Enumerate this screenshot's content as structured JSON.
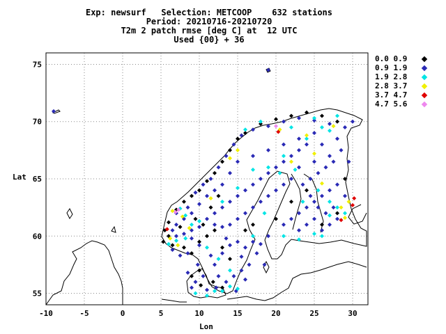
{
  "header": {
    "line1": "Exp: newsurf   Selection: METCOOP    632 stations",
    "line2": "Period: 20210716-20210720",
    "line3": "T2m 2 patch rmse [deg C] at  12 UTC",
    "line4": "Used {00} + 36"
  },
  "legend": [
    {
      "label": "0.0 0.9",
      "color": "#000000"
    },
    {
      "label": "0.9 1.9",
      "color": "#2a2ab5"
    },
    {
      "label": "1.9 2.8",
      "color": "#00e5e5"
    },
    {
      "label": "2.8 3.7",
      "color": "#f0f000"
    },
    {
      "label": "3.7 4.7",
      "color": "#e00000"
    },
    {
      "label": "4.7 5.6",
      "color": "#ee88ee"
    }
  ],
  "axes": {
    "xlabel": "Lon",
    "ylabel": "Lat",
    "xlim": [
      -10,
      32
    ],
    "ylim": [
      54,
      76
    ],
    "xticks": [
      -10,
      -5,
      0,
      5,
      10,
      15,
      20,
      25,
      30
    ],
    "yticks": [
      55,
      60,
      65,
      70,
      75
    ],
    "grid": true
  },
  "chart_data": {
    "type": "scatter",
    "description": "station rmse map",
    "series": [
      {
        "name": "0.0 0.9",
        "color": "#000000",
        "points": [
          [
            5.5,
            60.5
          ],
          [
            6,
            61.2
          ],
          [
            7,
            62.3
          ],
          [
            8,
            63
          ],
          [
            9,
            63.5
          ],
          [
            10,
            64
          ],
          [
            11,
            64.8
          ],
          [
            12,
            65.5
          ],
          [
            13,
            66.5
          ],
          [
            14,
            67.5
          ],
          [
            15,
            68.5
          ],
          [
            16,
            69
          ],
          [
            18,
            69.8
          ],
          [
            20,
            70.2
          ],
          [
            22,
            70.5
          ],
          [
            24,
            70.8
          ],
          [
            26,
            70.5
          ],
          [
            28,
            70
          ],
          [
            5.3,
            59.5
          ],
          [
            6.5,
            59.2
          ],
          [
            8,
            59
          ],
          [
            9,
            58.5
          ],
          [
            10,
            59.5
          ],
          [
            11,
            60
          ],
          [
            10.5,
            61
          ],
          [
            12,
            60.5
          ],
          [
            13,
            59
          ],
          [
            14,
            58
          ],
          [
            16,
            60.5
          ],
          [
            17,
            61
          ],
          [
            20,
            61.5
          ],
          [
            22,
            63
          ],
          [
            24,
            64
          ],
          [
            26,
            61
          ],
          [
            28,
            62
          ],
          [
            29,
            65
          ],
          [
            6,
            60
          ],
          [
            7.5,
            60.8
          ],
          [
            9.5,
            61.5
          ],
          [
            11.5,
            62.5
          ],
          [
            12.5,
            63.5
          ],
          [
            10.2,
            55.7
          ],
          [
            9,
            56.5
          ],
          [
            10,
            57
          ],
          [
            11.8,
            56
          ],
          [
            13,
            55.5
          ]
        ]
      },
      {
        "name": "0.9 1.9",
        "color": "#2a2ab5",
        "points": [
          [
            19,
            74.5
          ],
          [
            -9,
            70.9
          ],
          [
            7,
            62
          ],
          [
            8.5,
            62.5
          ],
          [
            9.5,
            63.8
          ],
          [
            10.5,
            64.5
          ],
          [
            11.5,
            65
          ],
          [
            12.5,
            66
          ],
          [
            13.5,
            67
          ],
          [
            14.5,
            68
          ],
          [
            15.5,
            68.8
          ],
          [
            17,
            69.3
          ],
          [
            19,
            69.6
          ],
          [
            21,
            70
          ],
          [
            23,
            70.3
          ],
          [
            25,
            70.1
          ],
          [
            27,
            69.8
          ],
          [
            29,
            69.5
          ],
          [
            30,
            70
          ],
          [
            25,
            69
          ],
          [
            23,
            68.5
          ],
          [
            21,
            68
          ],
          [
            19,
            67.5
          ],
          [
            17,
            67
          ],
          [
            15,
            66.5
          ],
          [
            14,
            65.5
          ],
          [
            13,
            64.5
          ],
          [
            12,
            64
          ],
          [
            11,
            63.5
          ],
          [
            10,
            62.8
          ],
          [
            9,
            62
          ],
          [
            8,
            61.5
          ],
          [
            7,
            61
          ],
          [
            6.5,
            60.5
          ],
          [
            7,
            60
          ],
          [
            8,
            60.2
          ],
          [
            9,
            60.5
          ],
          [
            10,
            60.8
          ],
          [
            11,
            61.5
          ],
          [
            12,
            62
          ],
          [
            13,
            62.5
          ],
          [
            14,
            63
          ],
          [
            15,
            63.5
          ],
          [
            16,
            64
          ],
          [
            17,
            64.5
          ],
          [
            18,
            65
          ],
          [
            19,
            65.5
          ],
          [
            20,
            66
          ],
          [
            21,
            66.5
          ],
          [
            22,
            67
          ],
          [
            23,
            67.5
          ],
          [
            24,
            68
          ],
          [
            26,
            68
          ],
          [
            28,
            68.5
          ],
          [
            27,
            67
          ],
          [
            25,
            66.5
          ],
          [
            23,
            66
          ],
          [
            22,
            65
          ],
          [
            21,
            64.5
          ],
          [
            20,
            64
          ],
          [
            19,
            63.5
          ],
          [
            18,
            63
          ],
          [
            17,
            62.5
          ],
          [
            16,
            62
          ],
          [
            15,
            61.5
          ],
          [
            14,
            61
          ],
          [
            13,
            60.8
          ],
          [
            12,
            61
          ],
          [
            13.5,
            59.8
          ],
          [
            15,
            59.5
          ],
          [
            16,
            59
          ],
          [
            17,
            59.5
          ],
          [
            18,
            59.3
          ],
          [
            19,
            60
          ],
          [
            17.5,
            58.5
          ],
          [
            16.5,
            57.5
          ],
          [
            15.5,
            57
          ],
          [
            14.5,
            56.5
          ],
          [
            13.5,
            56
          ],
          [
            12.5,
            56.5
          ],
          [
            12,
            57.5
          ],
          [
            11.5,
            58.3
          ],
          [
            13,
            58.5
          ],
          [
            14,
            59.2
          ],
          [
            15.5,
            58.2
          ],
          [
            18.5,
            57.5
          ],
          [
            16,
            56.2
          ],
          [
            21,
            61
          ],
          [
            22,
            61.5
          ],
          [
            23,
            62
          ],
          [
            24,
            62.5
          ],
          [
            25,
            63
          ],
          [
            26,
            63.5
          ],
          [
            27,
            64
          ],
          [
            28,
            64.5
          ],
          [
            29,
            63.5
          ],
          [
            25,
            61.5
          ],
          [
            24,
            61
          ],
          [
            23,
            60.5
          ],
          [
            26,
            60.5
          ],
          [
            27,
            61
          ],
          [
            28,
            61.5
          ],
          [
            27.5,
            62.5
          ],
          [
            26.5,
            62
          ],
          [
            25.5,
            62.5
          ],
          [
            24.5,
            63.5
          ],
          [
            23.5,
            64.5
          ],
          [
            24.5,
            65
          ],
          [
            25.5,
            65.5
          ],
          [
            26.5,
            66
          ],
          [
            27.5,
            66.5
          ],
          [
            28.5,
            67.5
          ],
          [
            29.5,
            66.5
          ],
          [
            10,
            59.2
          ],
          [
            9,
            59.8
          ],
          [
            8.5,
            58.5
          ],
          [
            7.5,
            58.3
          ],
          [
            6.5,
            58.8
          ],
          [
            9.5,
            56
          ],
          [
            9,
            55.5
          ],
          [
            10.5,
            56.5
          ],
          [
            11,
            55.3
          ],
          [
            12.2,
            55.5
          ],
          [
            14.8,
            55.2
          ],
          [
            8.5,
            56.8
          ],
          [
            9.8,
            57.5
          ]
        ]
      },
      {
        "name": "1.9 2.8",
        "color": "#00e5e5",
        "points": [
          [
            7.5,
            62.4
          ],
          [
            8.2,
            61.8
          ],
          [
            9,
            61
          ],
          [
            10,
            61.3
          ],
          [
            11,
            59
          ],
          [
            16,
            69.3
          ],
          [
            18,
            70
          ],
          [
            22,
            69.5
          ],
          [
            25,
            70.3
          ],
          [
            27,
            69.2
          ],
          [
            28,
            70.5
          ],
          [
            26,
            69.5
          ],
          [
            24,
            68.5
          ],
          [
            21,
            67
          ],
          [
            19,
            66
          ],
          [
            17,
            65.8
          ],
          [
            15,
            64.2
          ],
          [
            13,
            63
          ],
          [
            6,
            59.3
          ],
          [
            7,
            59.6
          ],
          [
            8.2,
            59.8
          ],
          [
            12.5,
            58
          ],
          [
            14,
            57
          ],
          [
            15,
            55.4
          ],
          [
            11,
            54.8
          ],
          [
            12,
            55.2
          ],
          [
            13,
            55.2
          ],
          [
            14,
            55.6
          ],
          [
            9.5,
            55
          ],
          [
            23,
            59.7
          ],
          [
            25,
            60.2
          ],
          [
            26,
            60
          ],
          [
            27,
            61.8
          ],
          [
            28,
            62.5
          ],
          [
            25.5,
            64
          ],
          [
            27,
            63
          ],
          [
            29,
            62
          ],
          [
            23.5,
            63
          ],
          [
            20.5,
            65.5
          ],
          [
            18.5,
            62
          ],
          [
            17,
            60
          ],
          [
            21,
            60
          ],
          [
            22.5,
            65.8
          ]
        ]
      },
      {
        "name": "2.8 3.7",
        "color": "#f0f000",
        "points": [
          [
            6.5,
            62.2
          ],
          [
            7.8,
            61.7
          ],
          [
            8.7,
            60.7
          ],
          [
            6.2,
            59.8
          ],
          [
            7.2,
            59.2
          ],
          [
            11.5,
            63.3
          ],
          [
            14,
            66.8
          ],
          [
            15,
            67.5
          ],
          [
            27.5,
            69.6
          ],
          [
            25,
            67.2
          ],
          [
            24,
            68.8
          ],
          [
            22,
            66.5
          ],
          [
            20.5,
            69.3
          ],
          [
            29.5,
            63
          ],
          [
            28.5,
            62.5
          ],
          [
            29,
            61.6
          ],
          [
            26,
            64.6
          ]
        ]
      },
      {
        "name": "3.7 4.7",
        "color": "#e00000",
        "points": [
          [
            5.8,
            60.6
          ],
          [
            20.3,
            69.1
          ],
          [
            30,
            62.7
          ],
          [
            30.2,
            63.3
          ],
          [
            28.5,
            61.4
          ]
        ]
      },
      {
        "name": "4.7 5.6",
        "color": "#ee88ee",
        "points": [
          [
            7.3,
            62.3
          ],
          [
            6.9,
            62.1
          ],
          [
            20,
            69.6
          ]
        ]
      }
    ]
  }
}
